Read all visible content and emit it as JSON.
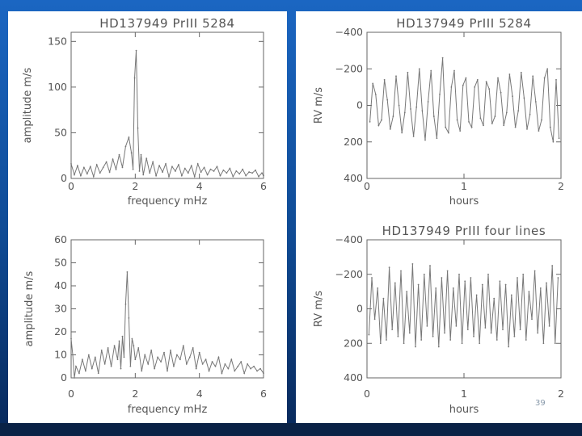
{
  "slide_number": "39",
  "chart_data": [
    {
      "type": "line",
      "title": "HD137949  PrIII  5284",
      "xlabel": "frequency  mHz",
      "ylabel": "amplitude  m/s",
      "xlim": [
        0,
        6
      ],
      "ylim": [
        0,
        160
      ],
      "xticks": [
        0,
        2,
        4,
        6
      ],
      "yticks": [
        0,
        50,
        100,
        150
      ],
      "series": [
        {
          "x": [
            0.0,
            0.1,
            0.2,
            0.3,
            0.4,
            0.5,
            0.6,
            0.7,
            0.8,
            0.9,
            1.0,
            1.1,
            1.2,
            1.3,
            1.4,
            1.5,
            1.6,
            1.7,
            1.8,
            1.88,
            1.93,
            1.98,
            2.03,
            2.08,
            2.13,
            2.18,
            2.25,
            2.35,
            2.45,
            2.55,
            2.65,
            2.75,
            2.85,
            2.95,
            3.05,
            3.15,
            3.25,
            3.35,
            3.45,
            3.55,
            3.65,
            3.75,
            3.85,
            3.95,
            4.05,
            4.15,
            4.25,
            4.35,
            4.45,
            4.55,
            4.65,
            4.75,
            4.85,
            4.95,
            5.05,
            5.15,
            5.25,
            5.35,
            5.45,
            5.55,
            5.65,
            5.75,
            5.85,
            5.95,
            6.0
          ],
          "values": [
            16,
            4,
            14,
            3,
            12,
            5,
            13,
            2,
            15,
            6,
            12,
            18,
            7,
            21,
            10,
            26,
            12,
            35,
            45,
            28,
            10,
            110,
            140,
            55,
            8,
            26,
            4,
            22,
            6,
            18,
            3,
            14,
            7,
            16,
            2,
            13,
            8,
            15,
            3,
            11,
            6,
            14,
            2,
            16,
            7,
            12,
            4,
            10,
            8,
            13,
            3,
            9,
            6,
            11,
            2,
            8,
            5,
            10,
            3,
            7,
            6,
            9,
            2,
            6,
            3
          ]
        }
      ]
    },
    {
      "type": "line",
      "title": "HD137949  PrIII  5284",
      "xlabel": "hours",
      "ylabel": "RV  m/s",
      "xlim": [
        0,
        2
      ],
      "ylim": [
        400,
        -400
      ],
      "xticks": [
        0,
        1,
        2
      ],
      "yticks": [
        -400,
        -200,
        0,
        200,
        400
      ],
      "ytick_labels": [
        "−400",
        "−200",
        "0",
        "200",
        "400"
      ],
      "series": [
        {
          "x": [
            0.03,
            0.06,
            0.09,
            0.12,
            0.15,
            0.18,
            0.21,
            0.24,
            0.27,
            0.3,
            0.33,
            0.36,
            0.39,
            0.42,
            0.45,
            0.48,
            0.51,
            0.54,
            0.57,
            0.6,
            0.63,
            0.66,
            0.69,
            0.72,
            0.75,
            0.78,
            0.81,
            0.84,
            0.87,
            0.9,
            0.93,
            0.96,
            0.99,
            1.02,
            1.05,
            1.08,
            1.11,
            1.14,
            1.17,
            1.2,
            1.23,
            1.26,
            1.29,
            1.32,
            1.35,
            1.38,
            1.41,
            1.44,
            1.47,
            1.5,
            1.53,
            1.56,
            1.59,
            1.62,
            1.65,
            1.68,
            1.71,
            1.74,
            1.77,
            1.8,
            1.83,
            1.86,
            1.89,
            1.92,
            1.95,
            1.98
          ],
          "values": [
            90,
            -120,
            -60,
            110,
            80,
            -140,
            -30,
            130,
            60,
            -160,
            0,
            150,
            40,
            -180,
            20,
            170,
            10,
            -200,
            30,
            190,
            -20,
            -190,
            60,
            180,
            -60,
            -260,
            120,
            150,
            -100,
            -190,
            80,
            140,
            -110,
            -150,
            90,
            120,
            -100,
            -140,
            70,
            110,
            -130,
            -90,
            100,
            60,
            -150,
            -70,
            110,
            40,
            -170,
            -50,
            120,
            30,
            -180,
            -40,
            130,
            50,
            -160,
            -20,
            140,
            80,
            -150,
            -200,
            120,
            200,
            -140,
            180
          ]
        }
      ]
    },
    {
      "type": "line",
      "xlabel": "frequency  mHz",
      "ylabel": "amplitude  m/s",
      "xlim": [
        0,
        6
      ],
      "ylim": [
        0,
        60
      ],
      "xticks": [
        0,
        2,
        4,
        6
      ],
      "yticks": [
        0,
        10,
        20,
        30,
        40,
        50,
        60
      ],
      "series": [
        {
          "x": [
            0.0,
            0.05,
            0.1,
            0.15,
            0.25,
            0.35,
            0.45,
            0.55,
            0.65,
            0.75,
            0.85,
            0.95,
            1.05,
            1.15,
            1.25,
            1.35,
            1.45,
            1.5,
            1.55,
            1.6,
            1.65,
            1.7,
            1.75,
            1.8,
            1.85,
            1.9,
            1.95,
            2.0,
            2.1,
            2.2,
            2.3,
            2.4,
            2.5,
            2.6,
            2.7,
            2.8,
            2.9,
            3.0,
            3.1,
            3.2,
            3.3,
            3.4,
            3.5,
            3.6,
            3.7,
            3.8,
            3.9,
            4.0,
            4.1,
            4.2,
            4.3,
            4.4,
            4.5,
            4.6,
            4.7,
            4.8,
            4.9,
            5.0,
            5.1,
            5.2,
            5.3,
            5.4,
            5.5,
            5.6,
            5.7,
            5.8,
            5.9,
            6.0
          ],
          "values": [
            17,
            10,
            0,
            5,
            2,
            8,
            3,
            10,
            4,
            9,
            2,
            12,
            6,
            13,
            5,
            14,
            8,
            16,
            4,
            18,
            9,
            32,
            46,
            26,
            5,
            17,
            14,
            8,
            13,
            3,
            10,
            6,
            12,
            4,
            9,
            7,
            11,
            3,
            12,
            5,
            10,
            8,
            14,
            6,
            9,
            13,
            4,
            11,
            6,
            8,
            3,
            7,
            5,
            9,
            2,
            6,
            4,
            8,
            3,
            5,
            7,
            2,
            6,
            4,
            5,
            3,
            4,
            2
          ]
        }
      ]
    },
    {
      "type": "line",
      "title": "HD137949  PrIII  four  lines",
      "xlabel": "hours",
      "ylabel": "RV  m/s",
      "xlim": [
        0,
        2
      ],
      "ylim": [
        400,
        -400
      ],
      "xticks": [
        0,
        1,
        2
      ],
      "yticks": [
        -400,
        -200,
        0,
        200,
        400
      ],
      "ytick_labels": [
        "−400",
        "−200",
        "0",
        "200",
        "400"
      ],
      "series": [
        {
          "x": [
            0.02,
            0.05,
            0.08,
            0.11,
            0.14,
            0.17,
            0.2,
            0.23,
            0.26,
            0.29,
            0.32,
            0.35,
            0.38,
            0.41,
            0.44,
            0.47,
            0.5,
            0.53,
            0.56,
            0.59,
            0.62,
            0.65,
            0.68,
            0.71,
            0.74,
            0.77,
            0.8,
            0.83,
            0.86,
            0.89,
            0.92,
            0.95,
            0.98,
            1.01,
            1.04,
            1.07,
            1.1,
            1.13,
            1.16,
            1.19,
            1.22,
            1.25,
            1.28,
            1.31,
            1.34,
            1.37,
            1.4,
            1.43,
            1.46,
            1.49,
            1.52,
            1.55,
            1.58,
            1.61,
            1.64,
            1.67,
            1.7,
            1.73,
            1.76,
            1.79,
            1.82,
            1.85,
            1.88,
            1.91,
            1.94,
            1.97
          ],
          "values": [
            150,
            -180,
            60,
            -120,
            200,
            -60,
            180,
            -240,
            120,
            -150,
            160,
            -220,
            200,
            -100,
            140,
            -260,
            220,
            -140,
            180,
            -200,
            100,
            -250,
            160,
            -120,
            220,
            -180,
            140,
            -220,
            180,
            -120,
            100,
            -200,
            200,
            -160,
            120,
            -180,
            160,
            -80,
            200,
            -140,
            110,
            -200,
            140,
            -60,
            180,
            -160,
            120,
            -140,
            220,
            -80,
            160,
            -180,
            120,
            -200,
            180,
            -100,
            60,
            -220,
            140,
            -120,
            200,
            -150,
            100,
            -250,
            200,
            -180
          ]
        }
      ]
    }
  ]
}
